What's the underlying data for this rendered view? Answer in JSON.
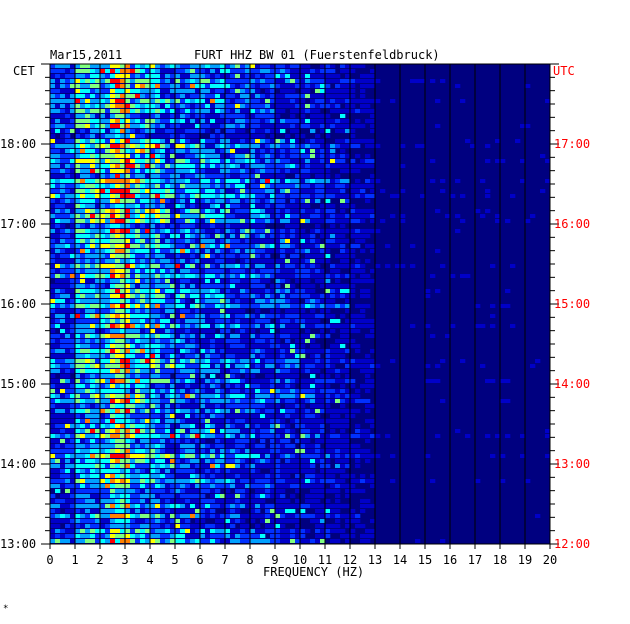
{
  "chart_data": {
    "type": "heatmap",
    "date": "Mar15,2011",
    "title": "FURT HHZ BW 01 (Fuerstenfeldbruck)",
    "left_timezone": "CET",
    "right_timezone": "UTC",
    "xlabel": "FREQUENCY (HZ)",
    "x_ticks": [
      "0",
      "1",
      "2",
      "3",
      "4",
      "5",
      "6",
      "7",
      "8",
      "9",
      "10",
      "11",
      "12",
      "13",
      "14",
      "15",
      "16",
      "17",
      "18",
      "19",
      "20"
    ],
    "xlim": [
      0,
      20
    ],
    "left_time_labels": [
      "18:00",
      "17:00",
      "16:00",
      "15:00",
      "14:00",
      "13:00"
    ],
    "right_time_labels": [
      "17:00",
      "16:00",
      "15:00",
      "14:00",
      "13:00",
      "12:00"
    ],
    "time_range_cet": [
      "13:00",
      "19:00"
    ],
    "colormap": [
      "#000080",
      "#0000c8",
      "#0030ff",
      "#00a0ff",
      "#00ffff",
      "#80ff80",
      "#ffff00",
      "#ff8000",
      "#ff0000"
    ],
    "dominant_band_hz": [
      2.5,
      3.2
    ],
    "bright_events_cet": [
      "17:30",
      "16:00",
      "14:52"
    ],
    "grid": true,
    "left_label_color": "#000000",
    "right_label_color": "#ff0000"
  },
  "footer_mark": "*"
}
